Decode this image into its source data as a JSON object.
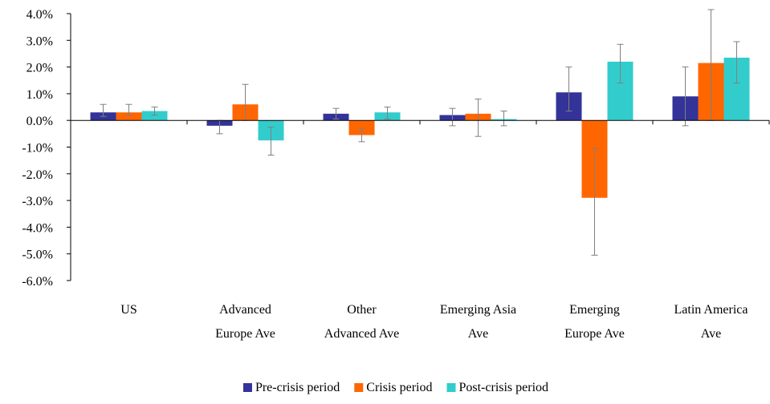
{
  "chart_data": {
    "type": "bar",
    "categories": [
      [
        "US"
      ],
      [
        "Advanced",
        "Europe Ave"
      ],
      [
        "Other",
        "Advanced Ave"
      ],
      [
        "Emerging Asia",
        "Ave"
      ],
      [
        "Emerging",
        "Europe Ave"
      ],
      [
        "Latin America",
        "Ave"
      ]
    ],
    "series": [
      {
        "name": "Pre-crisis period",
        "color": "#333399",
        "values": [
          0.3,
          -0.2,
          0.25,
          0.2,
          1.05,
          0.9
        ],
        "err_low": [
          0.15,
          -0.5,
          0.05,
          -0.2,
          0.35,
          -0.2
        ],
        "err_high": [
          0.6,
          0.0,
          0.45,
          0.45,
          2.0,
          2.0
        ]
      },
      {
        "name": "Crisis period",
        "color": "#ff6600",
        "values": [
          0.3,
          0.6,
          -0.55,
          0.25,
          -2.9,
          2.15
        ],
        "err_low": [
          0.2,
          0.0,
          -0.8,
          -0.6,
          -5.05,
          0.0
        ],
        "err_high": [
          0.6,
          1.35,
          -0.3,
          0.8,
          -1.05,
          4.15
        ]
      },
      {
        "name": "Post-crisis period",
        "color": "#33cccc",
        "values": [
          0.35,
          -0.75,
          0.3,
          0.05,
          2.2,
          2.35
        ],
        "err_low": [
          0.2,
          -1.3,
          0.05,
          -0.2,
          1.4,
          1.4
        ],
        "err_high": [
          0.5,
          -0.25,
          0.5,
          0.35,
          2.85,
          2.95
        ]
      }
    ],
    "ylim": [
      -6,
      4
    ],
    "yticks": [
      {
        "value": -6,
        "label": "-6.0%"
      },
      {
        "value": -5,
        "label": "-5.0%"
      },
      {
        "value": -4,
        "label": "-4.0%"
      },
      {
        "value": -3,
        "label": "-3.0%"
      },
      {
        "value": -2,
        "label": "-2.0%"
      },
      {
        "value": -1,
        "label": "-1.0%"
      },
      {
        "value": 0,
        "label": "0.0%"
      },
      {
        "value": 1,
        "label": "1.0%"
      },
      {
        "value": 2,
        "label": "2.0%"
      },
      {
        "value": 3,
        "label": "3.0%"
      },
      {
        "value": 4,
        "label": "4.0%"
      }
    ],
    "error_color": "#808080",
    "legend": "bottom"
  }
}
